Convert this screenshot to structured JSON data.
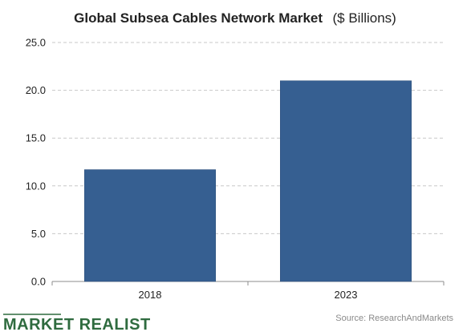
{
  "chart_data": {
    "type": "bar",
    "title": "Global Subsea Cables Network Market",
    "title_suffix": "($ Billions)",
    "categories": [
      "2018",
      "2023"
    ],
    "values": [
      11.7,
      21.0
    ],
    "ylim": [
      0,
      25
    ],
    "yticks": [
      "0.0",
      "5.0",
      "10.0",
      "15.0",
      "20.0",
      "25.0"
    ],
    "grid": true,
    "bar_color": "#365f91",
    "xlabel": "",
    "ylabel": ""
  },
  "footer": {
    "logo": "MARKET REALIST",
    "source": "Source: ResearchAndMarkets"
  },
  "colors": {
    "logo": "#2f6b3f",
    "grid": "#c8c8c8",
    "bar_edge": "#2c4f7a"
  }
}
